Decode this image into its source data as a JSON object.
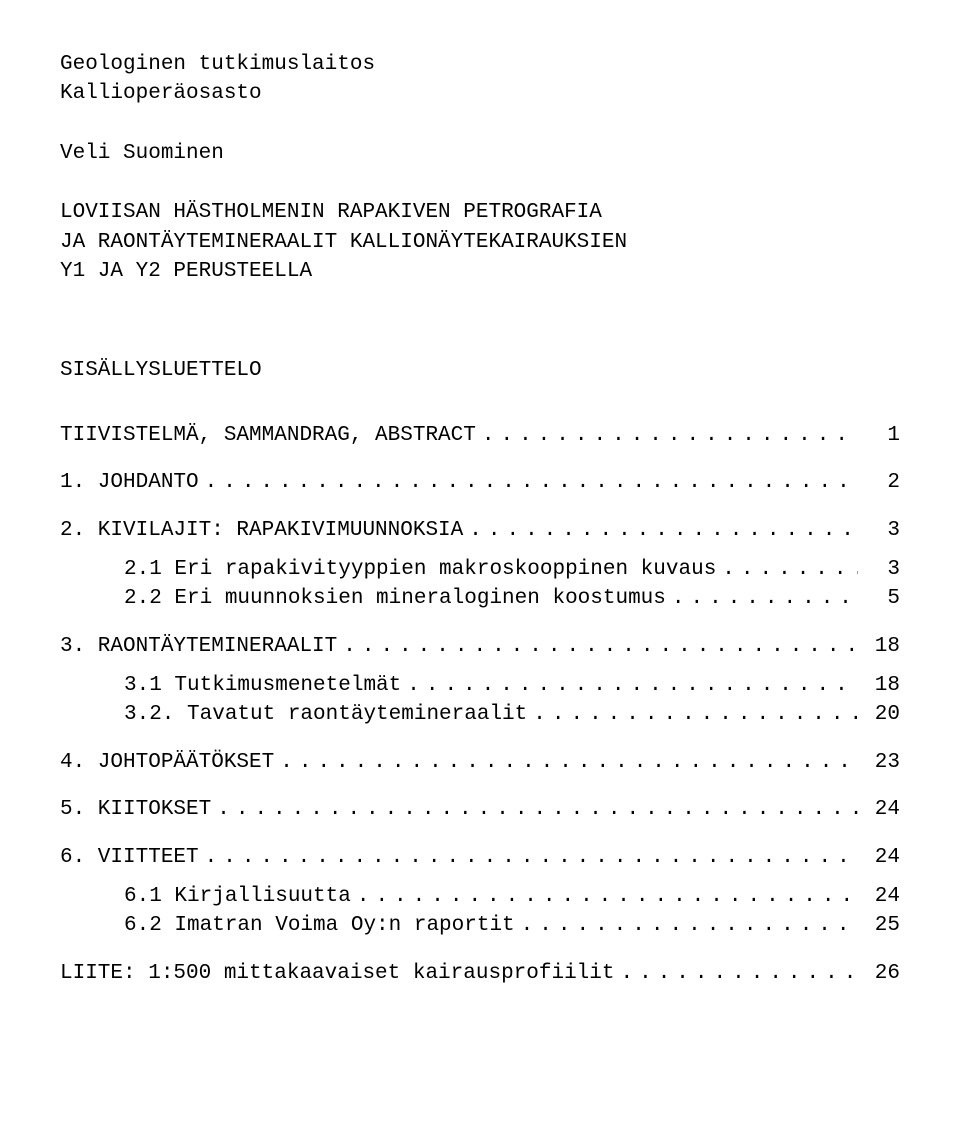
{
  "header": {
    "line1": "Geologinen tutkimuslaitos",
    "line2": "Kallioperäosasto"
  },
  "author": "Veli Suominen",
  "title": {
    "line1": "LOVIISAN HÄSTHOLMENIN RAPAKIVEN PETROGRAFIA",
    "line2": "JA RAONTÄYTEMINERAALIT KALLIONÄYTEKAIRAUKSIEN",
    "line3": "Y1 JA Y2 PERUSTEELLA"
  },
  "toc_title": "SISÄLLYSLUETTELO",
  "toc": {
    "summary": {
      "label": "TIIVISTELMÄ, SAMMANDRAG, ABSTRACT",
      "page": "1"
    },
    "s1": {
      "label": "1.  JOHDANTO",
      "page": "2"
    },
    "s2": {
      "label": "2.  KIVILAJIT:  RAPAKIVIMUUNNOKSIA",
      "page": "3"
    },
    "s2_1": {
      "label": "2.1   Eri rapakivityyppien makroskooppinen kuvaus",
      "page": "3"
    },
    "s2_2": {
      "label": "2.2   Eri muunnoksien mineraloginen koostumus",
      "page": "5"
    },
    "s3": {
      "label": "3.  RAONTÄYTEMINERAALIT",
      "page": "18"
    },
    "s3_1": {
      "label": "3.1   Tutkimusmenetelmät",
      "page": "18"
    },
    "s3_2": {
      "label": "3.2.  Tavatut raontäytemineraalit",
      "page": "20"
    },
    "s4": {
      "label": "4.  JOHTOPÄÄTÖKSET",
      "page": "23"
    },
    "s5": {
      "label": "5.  KIITOKSET",
      "page": "24"
    },
    "s6": {
      "label": "6.  VIITTEET",
      "page": "24"
    },
    "s6_1": {
      "label": "6.1   Kirjallisuutta",
      "page": "24"
    },
    "s6_2": {
      "label": "6.2   Imatran Voima Oy:n raportit",
      "page": "25"
    },
    "liite": {
      "label": "LIITE: 1:500 mittakaavaiset kairausprofiilit",
      "page": "26"
    }
  }
}
